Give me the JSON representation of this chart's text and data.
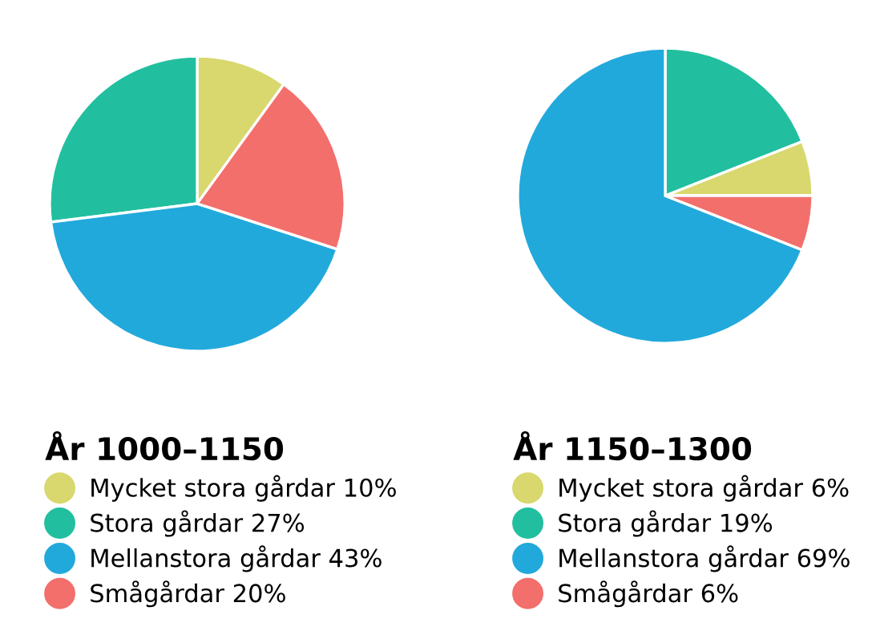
{
  "chart_data": [
    {
      "type": "pie",
      "title": "År 1000–1150",
      "categories": [
        "Mycket stora gårdar",
        "Stora gårdar",
        "Mellanstora gårdar",
        "Smågårdar"
      ],
      "values": [
        10,
        27,
        43,
        20
      ],
      "value_labels": [
        "10%",
        "27%",
        "43%",
        "20%"
      ],
      "colors": [
        "#d8d86e",
        "#21bf9f",
        "#22a9dc",
        "#f26f6c"
      ],
      "legend": "bottom"
    },
    {
      "type": "pie",
      "title": "År 1150–1300",
      "categories": [
        "Mycket stora gårdar",
        "Stora gårdar",
        "Mellanstora gårdar",
        "Smågårdar"
      ],
      "values": [
        6,
        19,
        69,
        6
      ],
      "value_labels": [
        "6%",
        "19%",
        "69%",
        "6%"
      ],
      "colors": [
        "#d8d86e",
        "#21bf9f",
        "#22a9dc",
        "#f26f6c"
      ],
      "legend": "bottom"
    }
  ]
}
